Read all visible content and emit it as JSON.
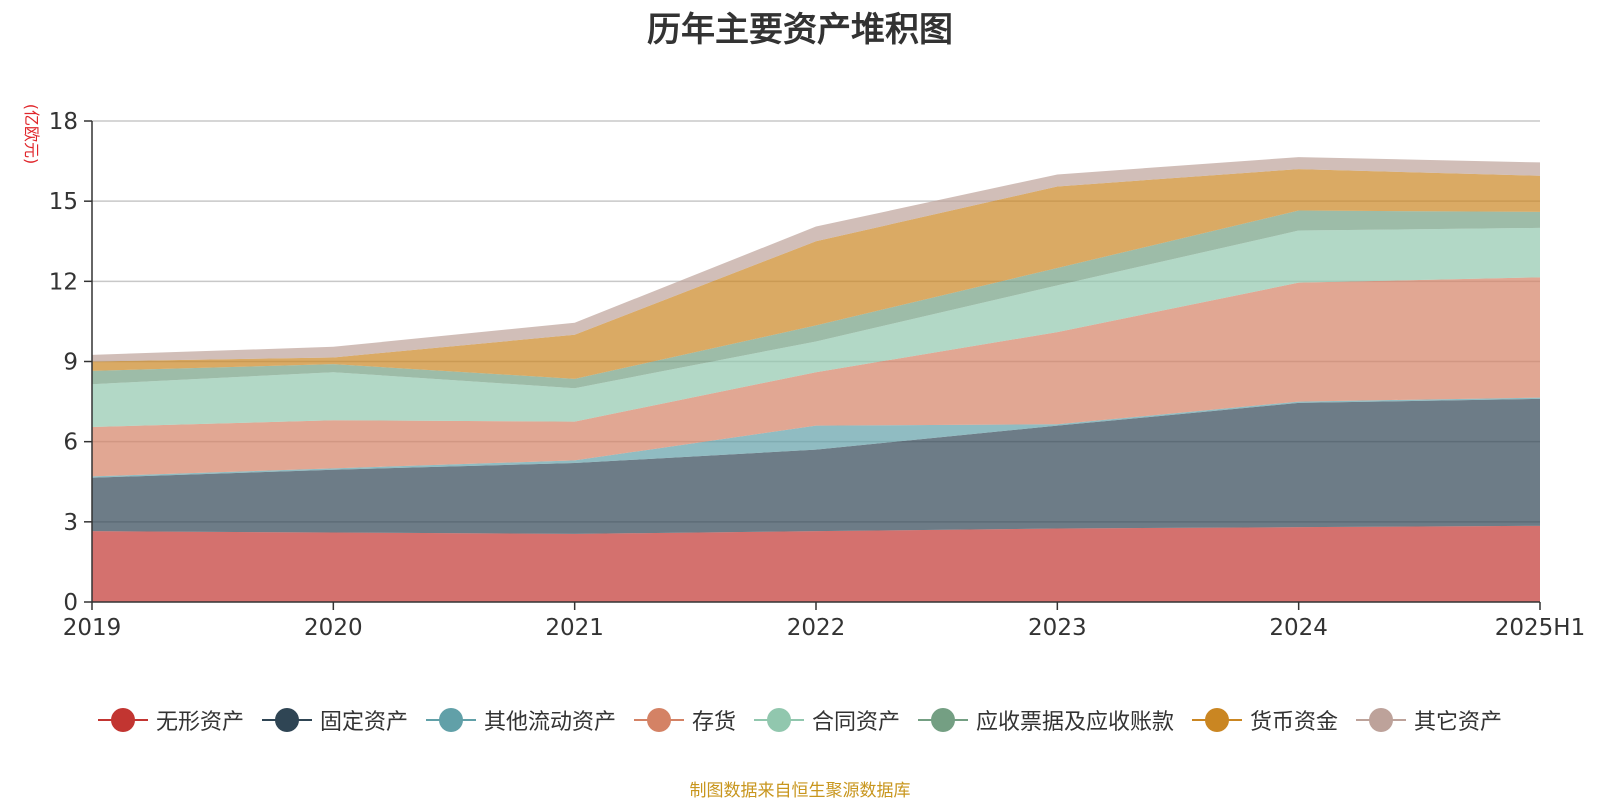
{
  "chart_data": {
    "type": "area",
    "stacked": true,
    "title": "历年主要资产堆积图",
    "ylabel": "(亿欧元)",
    "xlabel": "",
    "categories": [
      "2019",
      "2020",
      "2021",
      "2022",
      "2023",
      "2024",
      "2025H1"
    ],
    "ylim": [
      0,
      18
    ],
    "yticks": [
      "0",
      "3",
      "6",
      "9",
      "12",
      "15",
      "18"
    ],
    "grid": true,
    "legend_position": "bottom",
    "series": [
      {
        "name": "无形资产",
        "color": "#c23531",
        "values": [
          2.65,
          2.6,
          2.55,
          2.65,
          2.75,
          2.8,
          2.85
        ]
      },
      {
        "name": "固定资产",
        "color": "#2f4554",
        "values": [
          2.0,
          2.35,
          2.65,
          3.05,
          3.85,
          4.65,
          4.75
        ]
      },
      {
        "name": "其他流动资产",
        "color": "#61a0a8",
        "values": [
          0.05,
          0.05,
          0.1,
          0.9,
          0.05,
          0.05,
          0.05
        ]
      },
      {
        "name": "存货",
        "color": "#d48265",
        "values": [
          1.85,
          1.8,
          1.45,
          2.0,
          3.45,
          4.45,
          4.5
        ]
      },
      {
        "name": "合同资产",
        "color": "#91c7ae",
        "values": [
          1.6,
          1.8,
          1.25,
          1.15,
          1.75,
          1.95,
          1.85
        ]
      },
      {
        "name": "应收票据及应收账款",
        "color": "#749f83",
        "values": [
          0.5,
          0.3,
          0.35,
          0.6,
          0.65,
          0.75,
          0.6
        ]
      },
      {
        "name": "货币资金",
        "color": "#ca8622",
        "values": [
          0.35,
          0.25,
          1.65,
          3.15,
          3.05,
          1.55,
          1.35
        ]
      },
      {
        "name": "其它资产",
        "color": "#bda29a",
        "values": [
          0.25,
          0.4,
          0.45,
          0.55,
          0.45,
          0.45,
          0.5
        ]
      }
    ]
  },
  "source_note": "制图数据来自恒生聚源数据库"
}
